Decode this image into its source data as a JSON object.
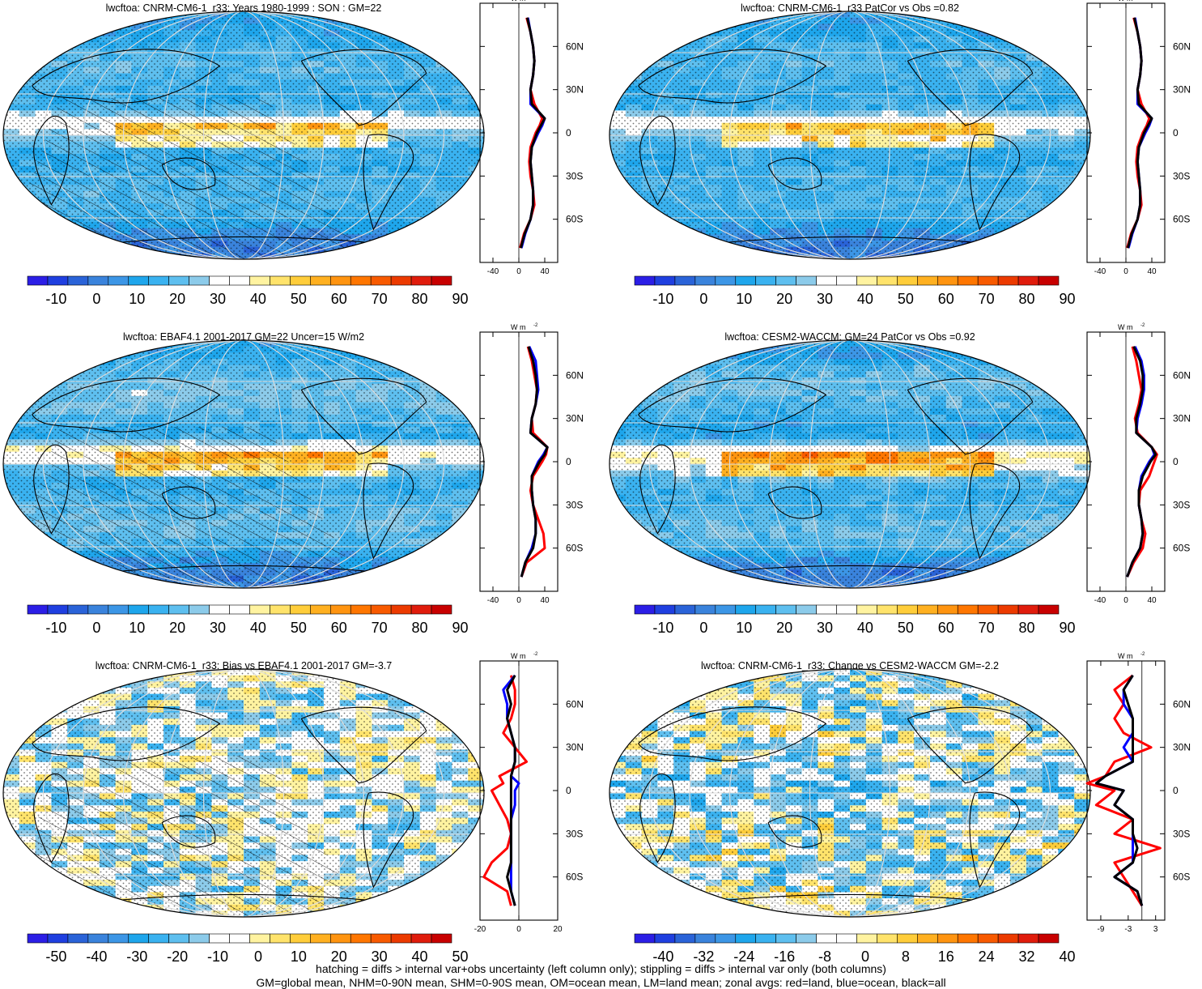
{
  "panels": [
    {
      "title": "lwcftoa: CNRM-CM6-1_r33: Years 1980-1999 : SON : GM=22",
      "colorbar_labels": [
        "-10",
        "0",
        "10",
        "20",
        "30",
        "40",
        "50",
        "60",
        "70",
        "80",
        "90"
      ],
      "zonal_xticks": [
        "-40",
        "0",
        "40"
      ],
      "zonal_unit": "W m",
      "lat_labels": [
        "60N",
        "30N",
        "0",
        "30S",
        "60S"
      ],
      "kind": "field",
      "hatch": true
    },
    {
      "title": "lwcftoa: CNRM-CM6-1_r33 PatCor vs Obs =0.82",
      "colorbar_labels": [
        "-10",
        "0",
        "10",
        "20",
        "30",
        "40",
        "50",
        "60",
        "70",
        "80",
        "90"
      ],
      "zonal_xticks": [
        "-40",
        "0",
        "40"
      ],
      "zonal_unit": "W m",
      "lat_labels": [
        "60N",
        "30N",
        "0",
        "30S",
        "60S"
      ],
      "kind": "field",
      "hatch": false
    },
    {
      "title": "lwcftoa: EBAF4.1 2001-2017 GM=22 Uncer=15 W/m2",
      "colorbar_labels": [
        "-10",
        "0",
        "10",
        "20",
        "30",
        "40",
        "50",
        "60",
        "70",
        "80",
        "90"
      ],
      "zonal_xticks": [
        "-40",
        "0",
        "40"
      ],
      "zonal_unit": "W m",
      "lat_labels": [
        "60N",
        "30N",
        "0",
        "30S",
        "60S"
      ],
      "kind": "field",
      "hatch": true
    },
    {
      "title": "lwcftoa: CESM2-WACCM: GM=24 PatCor vs Obs =0.92",
      "colorbar_labels": [
        "-10",
        "0",
        "10",
        "20",
        "30",
        "40",
        "50",
        "60",
        "70",
        "80",
        "90"
      ],
      "zonal_xticks": [
        "-40",
        "0",
        "40"
      ],
      "zonal_unit": "W m",
      "lat_labels": [
        "60N",
        "30N",
        "0",
        "30S",
        "60S"
      ],
      "kind": "field",
      "hatch": false
    },
    {
      "title": "lwcftoa: CNRM-CM6-1_r33: Bias vs EBAF4.1 2001-2017  GM=-3.7",
      "colorbar_labels": [
        "-50",
        "-40",
        "-30",
        "-20",
        "-10",
        "0",
        "10",
        "20",
        "30",
        "40",
        "50"
      ],
      "zonal_xticks": [
        "-20",
        "0",
        "20"
      ],
      "zonal_unit": "W m",
      "lat_labels": [
        "60N",
        "30N",
        "0",
        "30S",
        "60S"
      ],
      "kind": "diff",
      "hatch": true
    },
    {
      "title": "lwcftoa: CNRM-CM6-1_r33: Change vs CESM2-WACCM GM=-2.2",
      "colorbar_labels": [
        "-40",
        "-32",
        "-24",
        "-16",
        "-8",
        "0",
        "8",
        "16",
        "24",
        "32",
        "40"
      ],
      "zonal_xticks": [
        "-9",
        "-3",
        "3"
      ],
      "zonal_unit": "W m",
      "lat_labels": [
        "60N",
        "30N",
        "0",
        "30S",
        "60S"
      ],
      "kind": "diff",
      "hatch": false
    }
  ],
  "colors": {
    "field": [
      "#2b1ee6",
      "#1f3fe0",
      "#2a63d8",
      "#3a83dc",
      "#3c96e6",
      "#1ea6ec",
      "#3ab2f0",
      "#5ebfef",
      "#8ccbea",
      "#ffffff",
      "#ffffff",
      "#fff3a0",
      "#ffe36b",
      "#ffcd3a",
      "#ffb020",
      "#ff9410",
      "#ff7600",
      "#f85a00",
      "#ec3a00",
      "#e01c0c",
      "#c80000"
    ],
    "diff": [
      "#2b1ee6",
      "#1f3fe0",
      "#2a63d8",
      "#3a83dc",
      "#3c96e6",
      "#1ea6ec",
      "#3ab2f0",
      "#5ebfef",
      "#8ccbea",
      "#ffffff",
      "#ffffff",
      "#fff3a0",
      "#ffe36b",
      "#ffcd3a",
      "#ffb020",
      "#ff9410",
      "#ff7600",
      "#f85a00",
      "#ec3a00",
      "#e01c0c",
      "#c80000"
    ],
    "land": "#ff0000",
    "ocean": "#0000ff",
    "all": "#000000"
  },
  "chart_data": [
    {
      "type": "heatmap",
      "title": "lwcftoa: CNRM-CM6-1_r33: Years 1980-1999 : SON : GM=22",
      "colorbar_range": [
        -15,
        95
      ],
      "zonal_lat": [
        -80,
        -70,
        -60,
        -50,
        -40,
        -30,
        -20,
        -10,
        0,
        5,
        10,
        20,
        30,
        40,
        50,
        60,
        70,
        80
      ],
      "zonal_land": [
        2,
        8,
        18,
        24,
        22,
        18,
        16,
        18,
        26,
        32,
        36,
        24,
        18,
        22,
        24,
        22,
        18,
        12
      ],
      "zonal_ocean": [
        4,
        10,
        18,
        22,
        22,
        20,
        18,
        20,
        30,
        36,
        40,
        18,
        18,
        22,
        24,
        22,
        18,
        14
      ],
      "zonal_all": [
        3,
        9,
        18,
        22,
        22,
        20,
        18,
        20,
        28,
        34,
        40,
        20,
        18,
        22,
        24,
        22,
        18,
        13
      ]
    },
    {
      "type": "heatmap",
      "title": "lwcftoa: CNRM-CM6-1_r33 PatCor vs Obs =0.82",
      "colorbar_range": [
        -15,
        95
      ],
      "zonal_lat": [
        -80,
        -70,
        -60,
        -50,
        -40,
        -30,
        -20,
        -10,
        0,
        5,
        10,
        20,
        30,
        40,
        50,
        60,
        70,
        80
      ],
      "zonal_land": [
        2,
        8,
        18,
        24,
        22,
        18,
        16,
        18,
        26,
        32,
        36,
        24,
        18,
        22,
        24,
        22,
        18,
        12
      ],
      "zonal_ocean": [
        4,
        10,
        18,
        22,
        22,
        20,
        18,
        20,
        30,
        36,
        40,
        18,
        18,
        22,
        24,
        22,
        18,
        14
      ],
      "zonal_all": [
        3,
        9,
        18,
        22,
        22,
        20,
        18,
        20,
        28,
        34,
        40,
        20,
        18,
        22,
        24,
        22,
        18,
        13
      ]
    },
    {
      "type": "heatmap",
      "title": "lwcftoa: EBAF4.1 2001-2017 GM=22 Uncer=15 W/m2",
      "colorbar_range": [
        -15,
        95
      ],
      "zonal_lat": [
        -80,
        -70,
        -60,
        -50,
        -40,
        -30,
        -20,
        -10,
        0,
        5,
        10,
        20,
        30,
        40,
        50,
        60,
        70,
        80
      ],
      "zonal_land": [
        4,
        12,
        40,
        38,
        30,
        22,
        18,
        22,
        36,
        42,
        44,
        22,
        20,
        26,
        28,
        24,
        20,
        14
      ],
      "zonal_ocean": [
        4,
        10,
        20,
        26,
        26,
        22,
        20,
        20,
        30,
        38,
        44,
        18,
        20,
        26,
        30,
        28,
        26,
        16
      ],
      "zonal_all": [
        4,
        10,
        22,
        26,
        26,
        22,
        20,
        20,
        32,
        40,
        44,
        18,
        20,
        26,
        28,
        26,
        22,
        15
      ]
    },
    {
      "type": "heatmap",
      "title": "lwcftoa: CESM2-WACCM: GM=24 PatCor vs Obs =0.92",
      "colorbar_range": [
        -15,
        95
      ],
      "zonal_lat": [
        -80,
        -70,
        -60,
        -50,
        -40,
        -30,
        -20,
        -10,
        0,
        5,
        10,
        20,
        30,
        40,
        50,
        60,
        70,
        80
      ],
      "zonal_land": [
        2,
        12,
        26,
        30,
        24,
        20,
        22,
        36,
        44,
        48,
        40,
        18,
        14,
        20,
        24,
        20,
        16,
        10
      ],
      "zonal_ocean": [
        2,
        10,
        22,
        26,
        24,
        20,
        20,
        24,
        36,
        44,
        40,
        16,
        18,
        24,
        28,
        28,
        24,
        14
      ],
      "zonal_all": [
        2,
        10,
        22,
        26,
        24,
        20,
        20,
        26,
        38,
        46,
        40,
        16,
        16,
        22,
        26,
        26,
        22,
        12
      ]
    },
    {
      "type": "heatmap",
      "title": "lwcftoa: CNRM-CM6-1_r33: Bias vs EBAF4.1 2001-2017  GM=-3.7",
      "colorbar_range": [
        -55,
        55
      ],
      "zonal_lat": [
        -80,
        -70,
        -60,
        -50,
        -40,
        -30,
        -20,
        -10,
        0,
        5,
        10,
        20,
        30,
        40,
        50,
        60,
        70,
        80
      ],
      "zonal_land": [
        -4,
        -6,
        -18,
        -14,
        -6,
        -4,
        -6,
        -10,
        -14,
        -8,
        -10,
        4,
        -2,
        -8,
        -4,
        -2,
        -2,
        -4
      ],
      "zonal_ocean": [
        -2,
        -4,
        -4,
        -4,
        -4,
        -4,
        -4,
        -2,
        -2,
        0,
        -4,
        -2,
        -2,
        -4,
        -6,
        -6,
        -8,
        -2
      ],
      "zonal_all": [
        -2,
        -4,
        -6,
        -4,
        -4,
        -4,
        -4,
        -4,
        -4,
        -4,
        -4,
        -2,
        -2,
        -4,
        -6,
        -4,
        -6,
        -2
      ]
    },
    {
      "type": "heatmap",
      "title": "lwcftoa: CNRM-CM6-1_r33: Change vs CESM2-WACCM GM=-2.2",
      "colorbar_range": [
        -44,
        44
      ],
      "zonal_lat": [
        -80,
        -70,
        -60,
        -50,
        -40,
        -30,
        -20,
        -10,
        0,
        5,
        10,
        20,
        30,
        40,
        50,
        60,
        70,
        80
      ],
      "zonal_land": [
        0,
        -2,
        -4,
        -6,
        4,
        -6,
        -2,
        -10,
        -6,
        -12,
        -8,
        -6,
        2,
        -4,
        -6,
        -4,
        -6,
        -2
      ],
      "zonal_ocean": [
        0,
        -1,
        -6,
        -2,
        -2,
        -2,
        -2,
        -6,
        -4,
        -10,
        -8,
        -2,
        -4,
        -2,
        -2,
        -4,
        -4,
        -2
      ],
      "zonal_all": [
        0,
        -1,
        -6,
        -2,
        -1,
        -2,
        -2,
        -6,
        -4,
        -10,
        -8,
        -2,
        -2,
        -2,
        -2,
        -3,
        -4,
        -2
      ]
    }
  ],
  "footer": {
    "line1": "hatching = diffs > internal var+obs uncertainty (left column only); stippling = diffs > internal var only (both columns)",
    "line2": "GM=global mean, NHM=0-90N mean, SHM=0-90S mean, OM=ocean mean, LM=land mean; zonal avgs: red=land, blue=ocean, black=all"
  }
}
